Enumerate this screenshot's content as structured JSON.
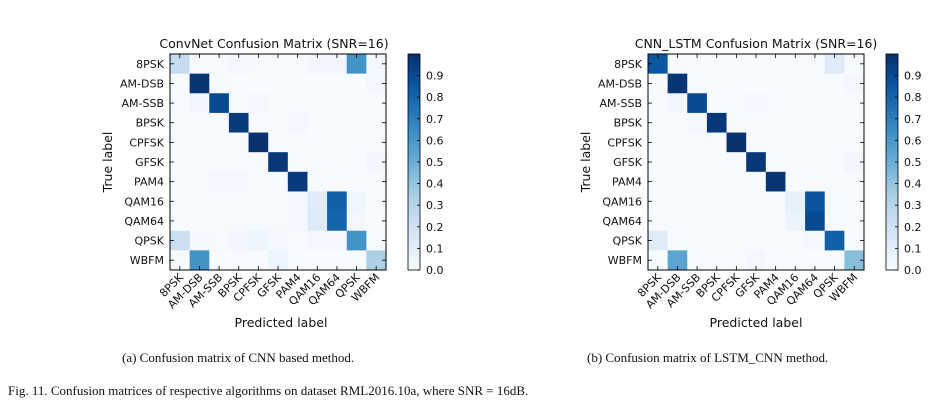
{
  "figure_caption": "Fig. 11.   Confusion matrices of respective algorithms on dataset RML2016.10a, where SNR = 16dB.",
  "chart_data": [
    {
      "type": "heatmap",
      "title": "ConvNet Confusion Matrix (SNR=16)",
      "xlabel": "Predicted label",
      "ylabel": "True label",
      "caption": "(a) Confusion matrix of CNN based method.",
      "labels": [
        "8PSK",
        "AM-DSB",
        "AM-SSB",
        "BPSK",
        "CPFSK",
        "GFSK",
        "PAM4",
        "QAM16",
        "QAM64",
        "QPSK",
        "WBFM"
      ],
      "colorbar_ticks": [
        "0.0",
        "0.1",
        "0.2",
        "0.3",
        "0.4",
        "0.5",
        "0.6",
        "0.7",
        "0.8",
        "0.9"
      ],
      "colormap": [
        "#f7fbff",
        "#deebf7",
        "#c6dbef",
        "#9ecae1",
        "#6baed6",
        "#4292c6",
        "#2171b5",
        "#08519c",
        "#08306b"
      ],
      "range": [
        0,
        1
      ],
      "matrix": [
        [
          0.25,
          0.01,
          0.01,
          0.02,
          0.01,
          0.01,
          0.01,
          0.03,
          0.03,
          0.62,
          0.02
        ],
        [
          0.0,
          0.98,
          0.0,
          0.0,
          0.0,
          0.0,
          0.0,
          0.0,
          0.0,
          0.0,
          0.02
        ],
        [
          0.0,
          0.03,
          0.9,
          0.01,
          0.02,
          0.01,
          0.01,
          0.01,
          0.0,
          0.01,
          0.0
        ],
        [
          0.01,
          0.0,
          0.01,
          0.96,
          0.0,
          0.0,
          0.02,
          0.0,
          0.0,
          0.0,
          0.0
        ],
        [
          0.0,
          0.0,
          0.0,
          0.0,
          0.99,
          0.0,
          0.0,
          0.0,
          0.0,
          0.01,
          0.0
        ],
        [
          0.0,
          0.0,
          0.0,
          0.0,
          0.0,
          0.97,
          0.0,
          0.0,
          0.0,
          0.0,
          0.03
        ],
        [
          0.0,
          0.0,
          0.02,
          0.02,
          0.0,
          0.0,
          0.96,
          0.0,
          0.0,
          0.0,
          0.0
        ],
        [
          0.0,
          0.0,
          0.01,
          0.01,
          0.01,
          0.01,
          0.02,
          0.12,
          0.82,
          0.04,
          0.0
        ],
        [
          0.0,
          0.0,
          0.01,
          0.01,
          0.01,
          0.01,
          0.02,
          0.13,
          0.8,
          0.02,
          0.0
        ],
        [
          0.22,
          0.02,
          0.01,
          0.03,
          0.05,
          0.02,
          0.01,
          0.02,
          0.02,
          0.62,
          0.0
        ],
        [
          0.0,
          0.62,
          0.0,
          0.0,
          0.0,
          0.05,
          0.0,
          0.0,
          0.0,
          0.0,
          0.33
        ]
      ]
    },
    {
      "type": "heatmap",
      "title": "CNN_LSTM Confusion Matrix (SNR=16)",
      "xlabel": "Predicted label",
      "ylabel": "True label",
      "caption": "(b) Confusion matrix of LSTM_CNN method.",
      "labels": [
        "8PSK",
        "AM-DSB",
        "AM-SSB",
        "BPSK",
        "CPFSK",
        "GFSK",
        "PAM4",
        "QAM16",
        "QAM64",
        "QPSK",
        "WBFM"
      ],
      "colorbar_ticks": [
        "0.0",
        "0.1",
        "0.2",
        "0.3",
        "0.4",
        "0.5",
        "0.6",
        "0.7",
        "0.8",
        "0.9"
      ],
      "colormap": [
        "#f7fbff",
        "#deebf7",
        "#c6dbef",
        "#9ecae1",
        "#6baed6",
        "#4292c6",
        "#2171b5",
        "#08519c",
        "#08306b"
      ],
      "range": [
        0,
        1
      ],
      "matrix": [
        [
          0.85,
          0.01,
          0.0,
          0.01,
          0.0,
          0.0,
          0.0,
          0.01,
          0.01,
          0.12,
          0.0
        ],
        [
          0.0,
          0.98,
          0.0,
          0.0,
          0.0,
          0.0,
          0.0,
          0.0,
          0.0,
          0.0,
          0.02
        ],
        [
          0.0,
          0.03,
          0.9,
          0.01,
          0.01,
          0.02,
          0.01,
          0.0,
          0.0,
          0.0,
          0.0
        ],
        [
          0.0,
          0.0,
          0.02,
          0.97,
          0.0,
          0.0,
          0.01,
          0.0,
          0.0,
          0.0,
          0.0
        ],
        [
          0.0,
          0.0,
          0.0,
          0.0,
          0.99,
          0.0,
          0.0,
          0.0,
          0.0,
          0.0,
          0.01
        ],
        [
          0.0,
          0.0,
          0.0,
          0.0,
          0.0,
          0.97,
          0.0,
          0.0,
          0.0,
          0.0,
          0.03
        ],
        [
          0.0,
          0.0,
          0.01,
          0.01,
          0.0,
          0.0,
          0.98,
          0.0,
          0.0,
          0.0,
          0.0
        ],
        [
          0.0,
          0.0,
          0.01,
          0.01,
          0.01,
          0.01,
          0.01,
          0.08,
          0.86,
          0.01,
          0.0
        ],
        [
          0.0,
          0.0,
          0.01,
          0.01,
          0.01,
          0.01,
          0.01,
          0.06,
          0.9,
          0.0,
          0.0
        ],
        [
          0.12,
          0.01,
          0.0,
          0.01,
          0.01,
          0.0,
          0.0,
          0.01,
          0.02,
          0.82,
          0.0
        ],
        [
          0.0,
          0.55,
          0.0,
          0.0,
          0.0,
          0.02,
          0.0,
          0.0,
          0.0,
          0.0,
          0.43
        ]
      ]
    }
  ]
}
